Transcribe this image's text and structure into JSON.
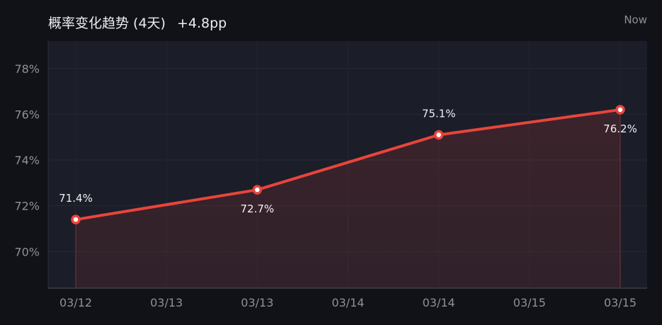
{
  "header": {
    "title": "概率变化趋势 (4天)",
    "delta": "+4.8pp",
    "time_label": "Now"
  },
  "colors": {
    "line": "#e8453c",
    "plot_bg": "#1b1d28",
    "page_bg": "#111217"
  },
  "chart_data": {
    "type": "area",
    "x": [
      "03/12",
      "03/13",
      "03/14",
      "03/15"
    ],
    "xtick_labels": [
      "03/12",
      "03/13",
      "03/13",
      "03/14",
      "03/14",
      "03/15",
      "03/15"
    ],
    "series": [
      {
        "values": [
          71.4,
          72.7,
          75.1,
          76.2
        ]
      }
    ],
    "data_labels": [
      "71.4%",
      "72.7%",
      "75.1%",
      "76.2%"
    ],
    "yticks": [
      70,
      72,
      74,
      76,
      78
    ],
    "ytick_labels": [
      "70%",
      "72%",
      "74%",
      "76%",
      "78%"
    ],
    "ylim": [
      68.4,
      79.2
    ],
    "grid": true,
    "legend": "none"
  }
}
